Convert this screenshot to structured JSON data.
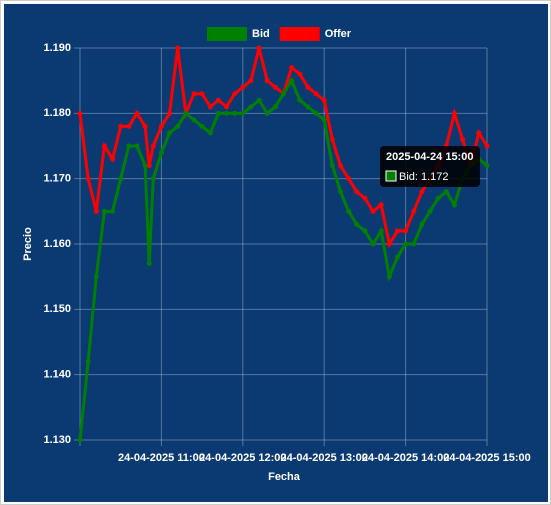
{
  "chart_data": {
    "type": "line",
    "x": [
      10.0,
      10.1,
      10.2,
      10.3,
      10.4,
      10.5,
      10.6,
      10.7,
      10.8,
      10.85,
      10.9,
      11.0,
      11.1,
      11.2,
      11.3,
      11.4,
      11.5,
      11.6,
      11.7,
      11.8,
      11.9,
      12.0,
      12.1,
      12.2,
      12.3,
      12.4,
      12.5,
      12.6,
      12.7,
      12.8,
      12.9,
      13.0,
      13.1,
      13.2,
      13.3,
      13.4,
      13.5,
      13.6,
      13.7,
      13.8,
      13.9,
      14.0,
      14.1,
      14.2,
      14.3,
      14.4,
      14.5,
      14.6,
      14.7,
      14.8,
      14.9,
      15.0
    ],
    "series": [
      {
        "name": "Bid",
        "color": "#008000",
        "values": [
          1.13,
          1.142,
          1.155,
          1.165,
          1.165,
          1.17,
          1.175,
          1.175,
          1.172,
          1.157,
          1.17,
          1.174,
          1.177,
          1.178,
          1.18,
          1.179,
          1.178,
          1.177,
          1.18,
          1.18,
          1.18,
          1.18,
          1.181,
          1.182,
          1.18,
          1.181,
          1.183,
          1.185,
          1.182,
          1.181,
          1.18,
          1.179,
          1.172,
          1.168,
          1.165,
          1.163,
          1.162,
          1.16,
          1.162,
          1.155,
          1.158,
          1.16,
          1.16,
          1.163,
          1.165,
          1.167,
          1.168,
          1.166,
          1.17,
          1.172,
          1.173,
          1.172
        ]
      },
      {
        "name": "Offer",
        "color": "#ff0000",
        "values": [
          1.18,
          1.17,
          1.165,
          1.175,
          1.173,
          1.178,
          1.178,
          1.18,
          1.178,
          1.172,
          1.175,
          1.178,
          1.18,
          1.19,
          1.18,
          1.183,
          1.183,
          1.181,
          1.182,
          1.181,
          1.183,
          1.184,
          1.185,
          1.19,
          1.185,
          1.184,
          1.183,
          1.187,
          1.186,
          1.184,
          1.183,
          1.182,
          1.176,
          1.172,
          1.17,
          1.168,
          1.167,
          1.165,
          1.166,
          1.16,
          1.162,
          1.162,
          1.165,
          1.168,
          1.17,
          1.172,
          1.175,
          1.18,
          1.176,
          1.172,
          1.177,
          1.175
        ]
      }
    ],
    "xlim": [
      10,
      15
    ],
    "xticks": [
      {
        "value": 11,
        "label": "24-04-2025 11:00"
      },
      {
        "value": 12,
        "label": "24-04-2025 12:00"
      },
      {
        "value": 13,
        "label": "24-04-2025 13:00"
      },
      {
        "value": 14,
        "label": "24-04-2025 14:00"
      },
      {
        "value": 15,
        "label": "24-04-2025 15:00"
      }
    ],
    "ylim": [
      1.13,
      1.19
    ],
    "yticks": [
      {
        "value": 1.13,
        "label": "1.130"
      },
      {
        "value": 1.14,
        "label": "1.140"
      },
      {
        "value": 1.15,
        "label": "1.150"
      },
      {
        "value": 1.16,
        "label": "1.160"
      },
      {
        "value": 1.17,
        "label": "1.170"
      },
      {
        "value": 1.18,
        "label": "1.180"
      },
      {
        "value": 1.19,
        "label": "1.190"
      }
    ],
    "x_label": "Fecha",
    "y_label": "Precio",
    "grid": true,
    "legend": "top",
    "tooltip": {
      "title": "2025-04-24 15:00",
      "label": "Bid: 1.172"
    }
  }
}
